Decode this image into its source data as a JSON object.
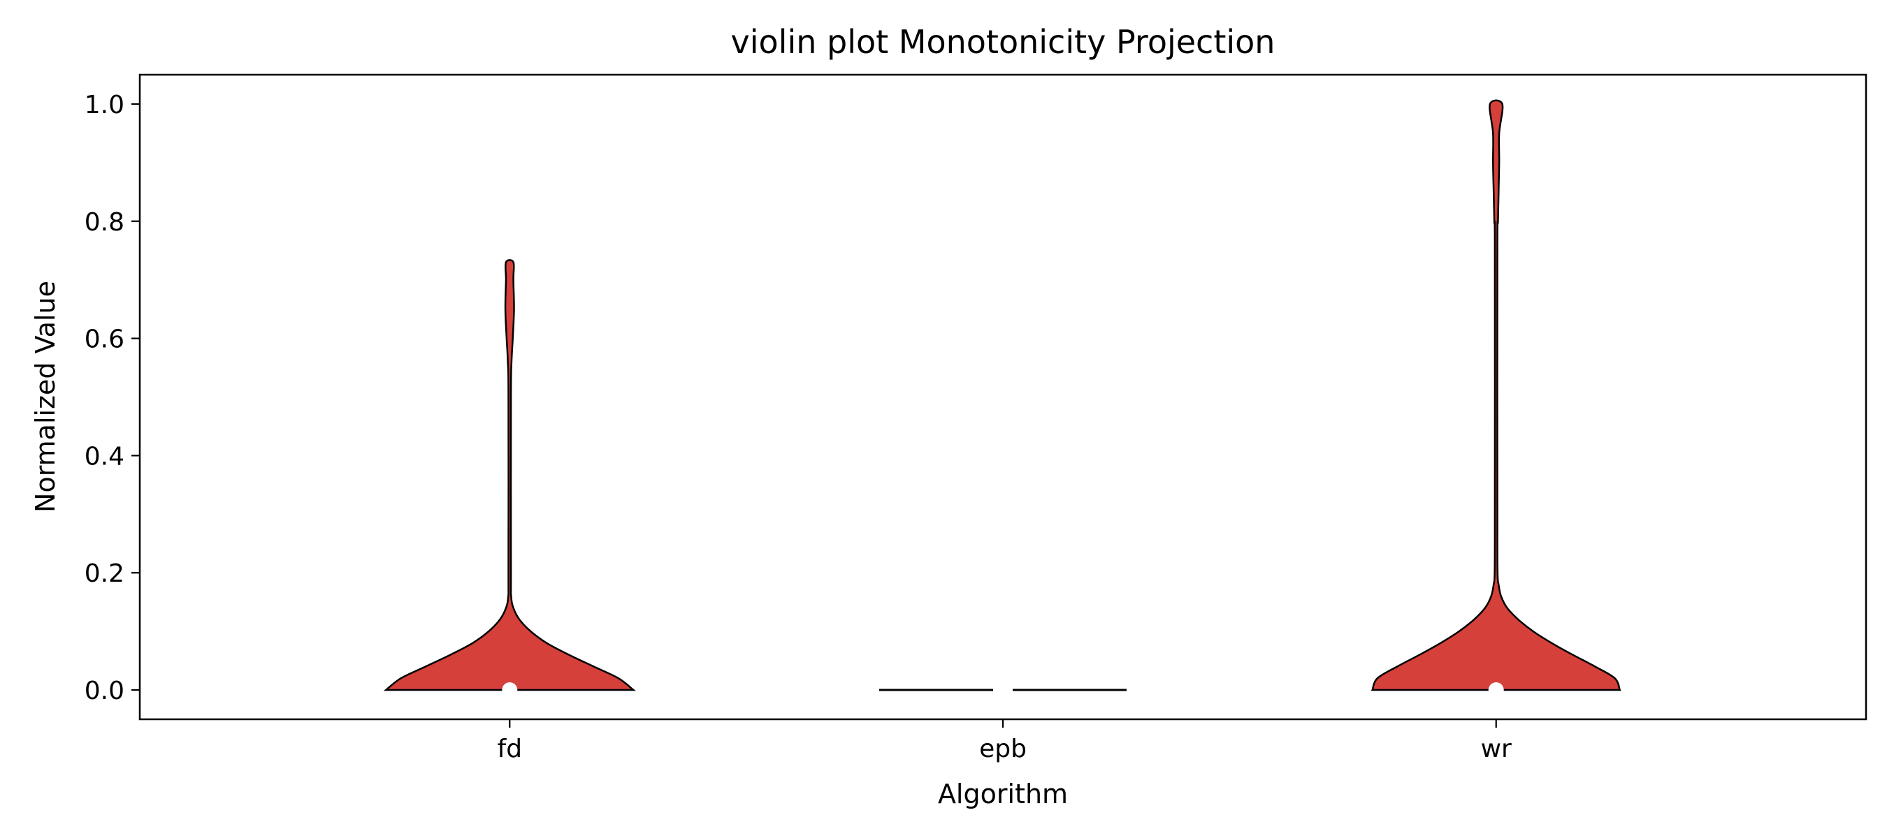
{
  "chart_data": {
    "type": "violin",
    "title": "violin plot Monotonicity Projection",
    "xlabel": "Algorithm",
    "ylabel": "Normalized Value",
    "categories": [
      "fd",
      "epb",
      "wr"
    ],
    "ylim": [
      -0.05,
      1.05
    ],
    "yticks": [
      0.0,
      0.2,
      0.4,
      0.6,
      0.8,
      1.0
    ],
    "ytick_labels": [
      "0.0",
      "0.2",
      "0.4",
      "0.6",
      "0.8",
      "1.0"
    ],
    "grid": false,
    "legend": "none",
    "colors": {
      "violin_fill": "#d5403a",
      "violin_edge": "#000000",
      "median_marker": "#ffffff"
    },
    "violins": [
      {
        "category": "fd",
        "min": 0.0,
        "max": 0.73,
        "median": 0.0,
        "density_profile": [
          [
            0.0,
            1.0
          ],
          [
            0.02,
            0.88
          ],
          [
            0.04,
            0.68
          ],
          [
            0.06,
            0.48
          ],
          [
            0.08,
            0.3
          ],
          [
            0.1,
            0.17
          ],
          [
            0.12,
            0.08
          ],
          [
            0.14,
            0.03
          ],
          [
            0.16,
            0.012
          ],
          [
            0.2,
            0.01
          ],
          [
            0.5,
            0.01
          ],
          [
            0.56,
            0.015
          ],
          [
            0.6,
            0.025
          ],
          [
            0.65,
            0.035
          ],
          [
            0.7,
            0.03
          ],
          [
            0.73,
            0.03
          ]
        ]
      },
      {
        "category": "epb",
        "min": 0.0,
        "max": 0.0,
        "median": null,
        "density_profile": []
      },
      {
        "category": "wr",
        "min": 0.0,
        "max": 1.0,
        "median": 0.0,
        "density_profile": [
          [
            0.0,
            1.0
          ],
          [
            0.02,
            0.96
          ],
          [
            0.04,
            0.8
          ],
          [
            0.06,
            0.62
          ],
          [
            0.08,
            0.45
          ],
          [
            0.1,
            0.3
          ],
          [
            0.12,
            0.18
          ],
          [
            0.14,
            0.09
          ],
          [
            0.16,
            0.04
          ],
          [
            0.18,
            0.02
          ],
          [
            0.2,
            0.012
          ],
          [
            0.3,
            0.01
          ],
          [
            0.75,
            0.01
          ],
          [
            0.8,
            0.015
          ],
          [
            0.85,
            0.02
          ],
          [
            0.9,
            0.025
          ],
          [
            0.95,
            0.025
          ],
          [
            1.0,
            0.05
          ]
        ]
      }
    ]
  }
}
